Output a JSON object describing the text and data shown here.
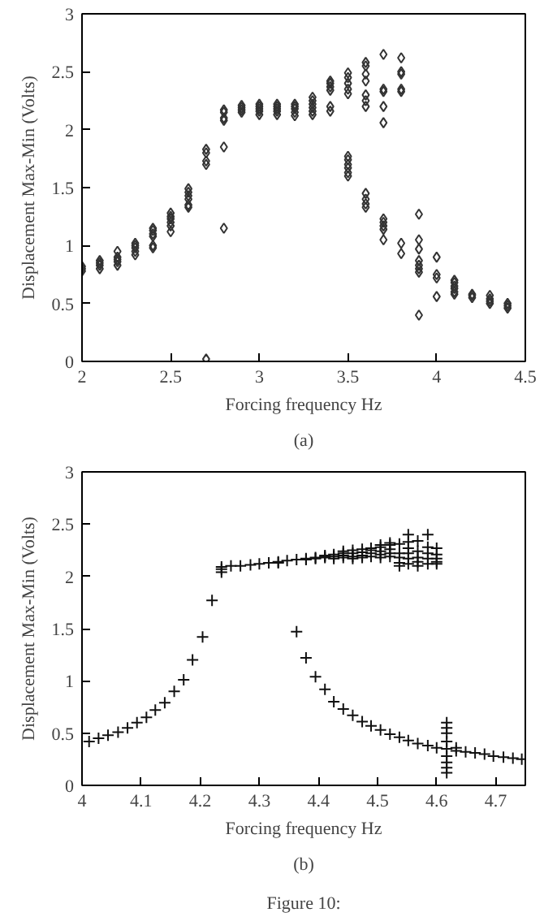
{
  "chart_data": [
    {
      "type": "scatter",
      "xlabel": "Forcing frequency Hz",
      "ylabel": "Displacement Max-Min (Volts)",
      "xlim": [
        2,
        4.5
      ],
      "ylim": [
        0,
        3
      ],
      "xticks": [
        2,
        2.5,
        3,
        3.5,
        4,
        4.5
      ],
      "yticks": [
        0,
        0.5,
        1,
        1.5,
        2,
        2.5,
        3
      ],
      "grid": false,
      "marker": "diamond",
      "annotations": [
        "(a)"
      ],
      "series": [
        {
          "color": "#333333",
          "x": [
            2,
            2,
            2,
            2.1,
            2.1,
            2.1,
            2.1,
            2.2,
            2.2,
            2.2,
            2.2,
            2.2,
            2.3,
            2.3,
            2.3,
            2.3,
            2.3,
            2.4,
            2.4,
            2.4,
            2.4,
            2.4,
            2.4,
            2.5,
            2.5,
            2.5,
            2.5,
            2.5,
            2.5,
            2.6,
            2.6,
            2.6,
            2.6,
            2.6,
            2.6,
            2.7,
            2.7,
            2.7,
            2.7,
            2.7,
            2.8,
            2.8,
            2.8,
            2.8,
            2.8,
            2.8,
            2.9,
            2.9,
            2.9,
            2.9,
            3,
            3,
            3,
            3,
            3,
            3.1,
            3.1,
            3.1,
            3.1,
            3.1,
            3.2,
            3.2,
            3.2,
            3.2,
            3.2,
            3.3,
            3.3,
            3.3,
            3.3,
            3.3,
            3.3,
            3.4,
            3.4,
            3.4,
            3.4,
            3.4,
            3.4,
            3.5,
            3.5,
            3.5,
            3.5,
            3.5,
            3.5,
            3.5,
            3.5,
            3.5,
            3.5,
            3.5,
            3.6,
            3.6,
            3.6,
            3.6,
            3.6,
            3.6,
            3.6,
            3.6,
            3.6,
            3.6,
            3.6,
            3.7,
            3.7,
            3.7,
            3.7,
            3.7,
            3.7,
            3.7,
            3.7,
            3.7,
            3.7,
            3.8,
            3.8,
            3.8,
            3.8,
            3.8,
            3.8,
            3.8,
            3.9,
            3.9,
            3.9,
            3.9,
            3.9,
            3.9,
            3.9,
            3.9,
            4,
            4,
            4,
            4,
            4.1,
            4.1,
            4.1,
            4.1,
            4.1,
            4.1,
            4.2,
            4.2,
            4.2,
            4.3,
            4.3,
            4.3,
            4.3,
            4.4,
            4.4,
            4.4
          ],
          "values": [
            0.78,
            0.8,
            0.82,
            0.8,
            0.83,
            0.85,
            0.87,
            0.83,
            0.86,
            0.88,
            0.9,
            0.95,
            0.92,
            0.95,
            0.98,
            1.0,
            1.02,
            0.98,
            1.0,
            1.08,
            1.1,
            1.13,
            1.15,
            1.12,
            1.17,
            1.2,
            1.23,
            1.25,
            1.28,
            1.33,
            1.35,
            1.4,
            1.43,
            1.46,
            1.49,
            0.02,
            1.7,
            1.73,
            1.8,
            1.83,
            1.15,
            1.85,
            2.08,
            2.1,
            2.15,
            2.17,
            2.15,
            2.17,
            2.19,
            2.21,
            2.13,
            2.16,
            2.18,
            2.2,
            2.22,
            2.13,
            2.16,
            2.18,
            2.2,
            2.22,
            2.12,
            2.15,
            2.18,
            2.2,
            2.22,
            2.13,
            2.16,
            2.19,
            2.22,
            2.25,
            2.28,
            2.16,
            2.2,
            2.34,
            2.37,
            2.4,
            2.42,
            1.6,
            1.63,
            1.67,
            1.7,
            1.74,
            1.77,
            2.31,
            2.35,
            2.4,
            2.45,
            2.49,
            1.33,
            1.36,
            1.4,
            1.45,
            2.2,
            2.25,
            2.3,
            2.42,
            2.48,
            2.55,
            2.58,
            1.05,
            1.14,
            1.17,
            1.2,
            1.23,
            2.06,
            2.2,
            2.33,
            2.35,
            2.65,
            0.93,
            1.02,
            2.33,
            2.35,
            2.48,
            2.5,
            2.62,
            0.4,
            0.77,
            0.8,
            0.83,
            0.87,
            0.97,
            1.05,
            1.27,
            0.56,
            0.72,
            0.75,
            0.9,
            0.58,
            0.6,
            0.63,
            0.65,
            0.68,
            0.7,
            0.55,
            0.57,
            0.58,
            0.5,
            0.52,
            0.54,
            0.57,
            0.46,
            0.48,
            0.5
          ]
        }
      ]
    },
    {
      "type": "scatter",
      "xlabel": "Forcing frequency Hz",
      "ylabel": "Displacement Max-Min (Volts)",
      "xlim": [
        4,
        4.75
      ],
      "ylim": [
        0,
        3
      ],
      "xticks": [
        4,
        4.1,
        4.2,
        4.3,
        4.4,
        4.5,
        4.6,
        4.7
      ],
      "yticks": [
        0,
        0.5,
        1,
        1.5,
        2,
        2.5,
        3
      ],
      "grid": false,
      "marker": "cross",
      "annotations": [
        "(b)",
        "Figure 10:"
      ],
      "series": [
        {
          "color": "#111111",
          "x": [
            4.012,
            4.028,
            4.044,
            4.061,
            4.077,
            4.093,
            4.109,
            4.124,
            4.14,
            4.156,
            4.172,
            4.187,
            4.204,
            4.22,
            4.236,
            4.236,
            4.236,
            4.252,
            4.268,
            4.285,
            4.3,
            4.316,
            4.332,
            4.332,
            4.347,
            4.363,
            4.363,
            4.379,
            4.379,
            4.379,
            4.395,
            4.395,
            4.395,
            4.411,
            4.411,
            4.411,
            4.411,
            4.426,
            4.426,
            4.426,
            4.426,
            4.442,
            4.442,
            4.442,
            4.442,
            4.442,
            4.458,
            4.458,
            4.458,
            4.458,
            4.458,
            4.474,
            4.474,
            4.474,
            4.474,
            4.474,
            4.489,
            4.489,
            4.489,
            4.489,
            4.489,
            4.505,
            4.505,
            4.505,
            4.505,
            4.505,
            4.505,
            4.521,
            4.521,
            4.521,
            4.521,
            4.521,
            4.521,
            4.537,
            4.537,
            4.537,
            4.537,
            4.537,
            4.537,
            4.552,
            4.552,
            4.552,
            4.552,
            4.552,
            4.552,
            4.552,
            4.568,
            4.568,
            4.568,
            4.568,
            4.568,
            4.568,
            4.585,
            4.585,
            4.585,
            4.585,
            4.585,
            4.585,
            4.6,
            4.6,
            4.6,
            4.6,
            4.6,
            4.6,
            4.617,
            4.617,
            4.617,
            4.617,
            4.617,
            4.617,
            4.617,
            4.617,
            4.617,
            4.633,
            4.633,
            4.649,
            4.665,
            4.681,
            4.696,
            4.713,
            4.729,
            4.744
          ],
          "values": [
            0.42,
            0.45,
            0.48,
            0.51,
            0.55,
            0.6,
            0.65,
            0.72,
            0.79,
            0.9,
            1.01,
            1.2,
            1.42,
            1.77,
            2.04,
            2.07,
            2.09,
            2.1,
            2.1,
            2.11,
            2.12,
            2.13,
            2.13,
            2.14,
            2.15,
            1.47,
            2.16,
            1.22,
            2.16,
            2.17,
            1.04,
            2.17,
            2.18,
            0.92,
            2.18,
            2.19,
            2.2,
            0.8,
            2.17,
            2.19,
            2.21,
            0.73,
            2.18,
            2.2,
            2.22,
            2.24,
            0.67,
            2.17,
            2.19,
            2.22,
            2.25,
            0.61,
            2.18,
            2.2,
            2.23,
            2.26,
            0.57,
            2.19,
            2.22,
            2.25,
            2.27,
            0.53,
            2.18,
            2.21,
            2.24,
            2.28,
            2.3,
            0.49,
            2.19,
            2.22,
            2.26,
            2.3,
            2.32,
            0.46,
            2.1,
            2.13,
            2.18,
            2.22,
            2.31,
            0.43,
            2.12,
            2.17,
            2.22,
            2.27,
            2.33,
            2.4,
            0.4,
            2.1,
            2.14,
            2.18,
            2.24,
            2.34,
            0.38,
            2.12,
            2.17,
            2.22,
            2.28,
            2.4,
            0.36,
            2.12,
            2.14,
            2.17,
            2.21,
            2.27,
            0.12,
            0.17,
            0.22,
            0.28,
            0.35,
            0.42,
            0.5,
            0.55,
            0.6,
            0.33,
            0.36,
            0.32,
            0.31,
            0.3,
            0.28,
            0.27,
            0.26,
            0.25
          ]
        }
      ]
    }
  ]
}
